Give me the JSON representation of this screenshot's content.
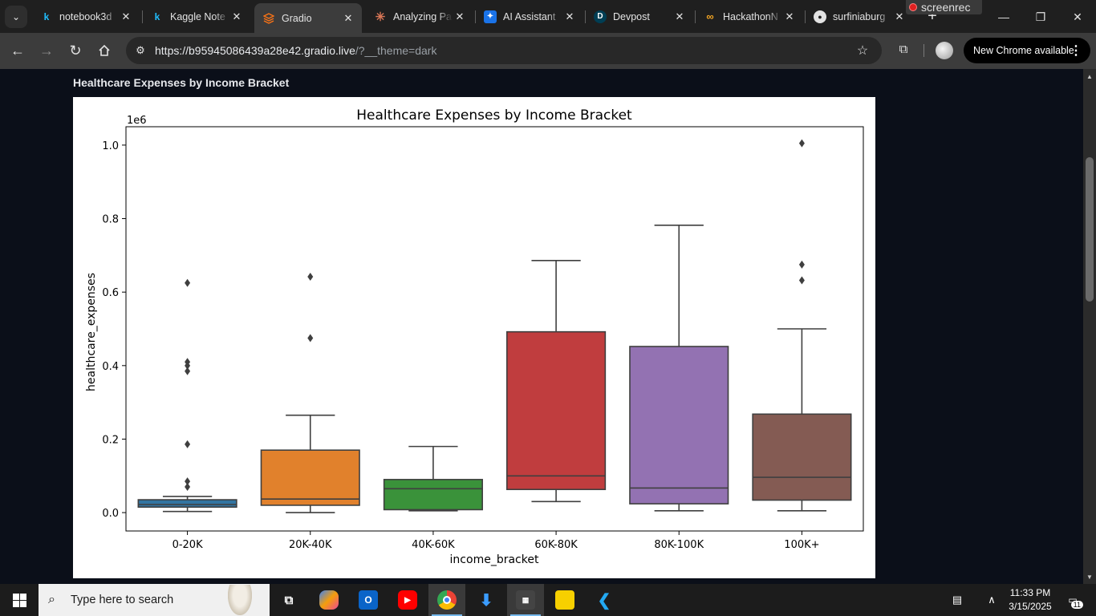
{
  "browser": {
    "tabs": [
      {
        "title": "notebook3d",
        "icon": "kaggle-icon",
        "color": "#20beff"
      },
      {
        "title": "Kaggle Note",
        "icon": "kaggle-icon",
        "color": "#20beff"
      },
      {
        "title": "Gradio",
        "icon": "gradio-icon",
        "color": "#f97316",
        "active": true
      },
      {
        "title": "Analyzing Pa",
        "icon": "claude-icon",
        "color": "#d97757"
      },
      {
        "title": "AI Assistant",
        "icon": "ai-assistant-icon",
        "color": "#1a73e8"
      },
      {
        "title": "Devpost",
        "icon": "devpost-icon",
        "color": "#003e54"
      },
      {
        "title": "HackathonN",
        "icon": "hackathon-icon",
        "color": "#f5a623"
      },
      {
        "title": "surfiniaburg",
        "icon": "github-icon",
        "color": "#e3e3e3"
      }
    ],
    "screenrec_label": "screenrec",
    "url_host": "https://b95945086439a28e42.gradio.live",
    "url_path": "/?__theme=dark",
    "update_label": "New Chrome available"
  },
  "page": {
    "block_label": "Healthcare Expenses by Income Bracket"
  },
  "chart_data": {
    "type": "box",
    "title": "Healthcare Expenses by Income Bracket",
    "xlabel": "income_bracket",
    "ylabel": "healthcare_expenses",
    "y_scale_label": "1e6",
    "ylim": [
      -0.05,
      1.05
    ],
    "yticks": [
      0.0,
      0.2,
      0.4,
      0.6,
      0.8,
      1.0
    ],
    "ytick_labels": [
      "0.0",
      "0.2",
      "0.4",
      "0.6",
      "0.8",
      "1.0"
    ],
    "grid": false,
    "categories": [
      "0-20K",
      "20K-40K",
      "40K-60K",
      "60K-80K",
      "80K-100K",
      "100K+"
    ],
    "boxes": [
      {
        "category": "0-20K",
        "whisker_low": 0.003,
        "q1": 0.015,
        "median": 0.022,
        "q3": 0.035,
        "whisker_high": 0.044,
        "color": "#3274a1",
        "outliers": [
          0.625,
          0.41,
          0.4,
          0.385,
          0.186,
          0.085,
          0.07
        ]
      },
      {
        "category": "20K-40K",
        "whisker_low": 0.0,
        "q1": 0.02,
        "median": 0.037,
        "q3": 0.17,
        "whisker_high": 0.265,
        "color": "#e1812c",
        "outliers": [
          0.642,
          0.475
        ]
      },
      {
        "category": "40K-60K",
        "whisker_low": 0.005,
        "q1": 0.008,
        "median": 0.065,
        "q3": 0.09,
        "whisker_high": 0.18,
        "color": "#3a923a",
        "outliers": []
      },
      {
        "category": "60K-80K",
        "whisker_low": 0.03,
        "q1": 0.063,
        "median": 0.1,
        "q3": 0.492,
        "whisker_high": 0.686,
        "color": "#c03d3e",
        "outliers": []
      },
      {
        "category": "80K-100K",
        "whisker_low": 0.005,
        "q1": 0.024,
        "median": 0.067,
        "q3": 0.452,
        "whisker_high": 0.782,
        "color": "#9372b2",
        "outliers": []
      },
      {
        "category": "100K+",
        "whisker_low": 0.005,
        "q1": 0.034,
        "median": 0.096,
        "q3": 0.268,
        "whisker_high": 0.5,
        "color": "#845b53",
        "outliers": [
          1.005,
          0.675,
          0.632
        ]
      }
    ]
  },
  "taskbar": {
    "search_placeholder": "Type here to search",
    "apps": [
      "task-view-icon",
      "copilot-icon",
      "outlook-icon",
      "youtube-icon",
      "chrome-icon",
      "downloads-icon",
      "video-editor-icon",
      "sticky-notes-icon",
      "vscode-icon"
    ],
    "time": "11:33 PM",
    "date": "3/15/2025",
    "notification_count": "11"
  }
}
